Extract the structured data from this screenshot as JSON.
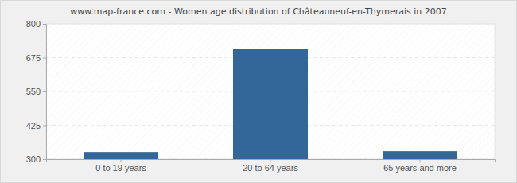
{
  "chart_data": {
    "type": "bar",
    "title": "www.map-france.com - Women age distribution of Châteauneuf-en-Thymerais in 2007",
    "categories": [
      "0 to 19 years",
      "20 to 64 years",
      "65 years and more"
    ],
    "values": [
      326,
      707,
      329
    ],
    "color": "#336699",
    "ylim": [
      300,
      800
    ],
    "yticks": [
      300,
      425,
      550,
      675,
      800
    ],
    "grid": true
  }
}
